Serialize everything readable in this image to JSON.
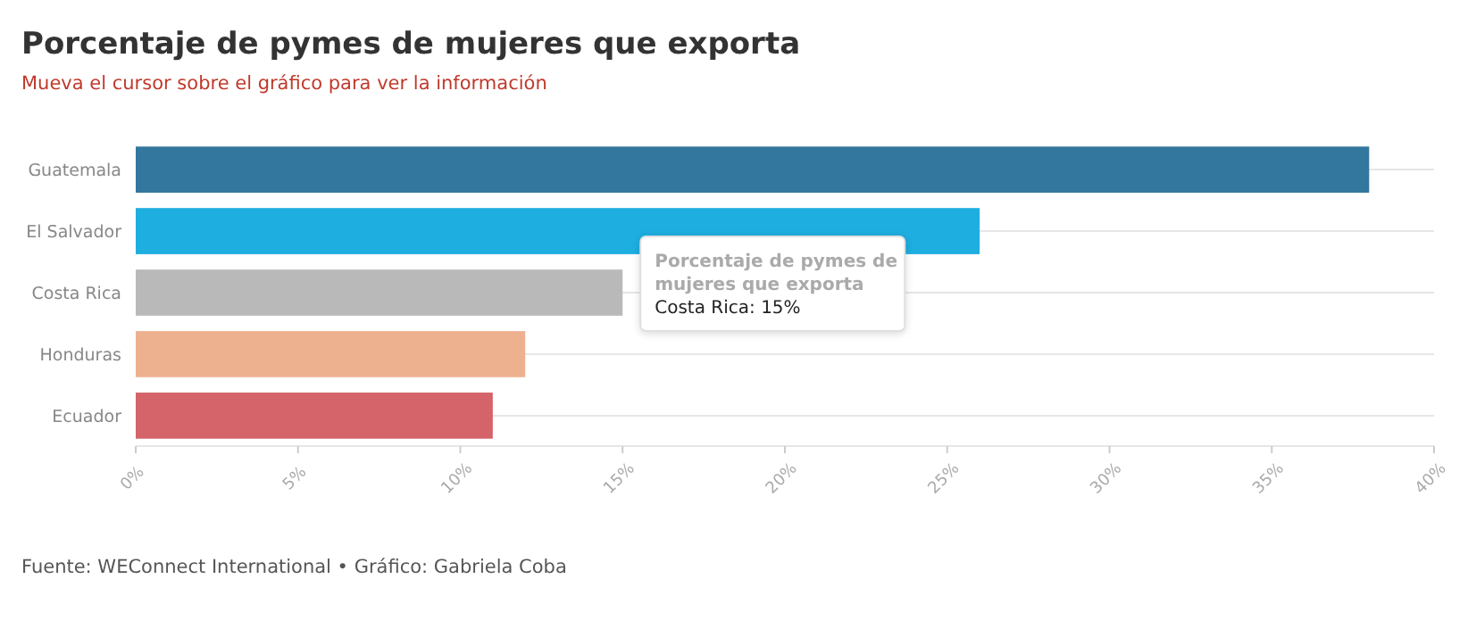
{
  "chart_data": {
    "type": "bar",
    "orientation": "horizontal",
    "title": "Porcentaje de pymes de mujeres que exporta",
    "subtitle": "Mueva el cursor sobre el gráfico para ver la información",
    "categories": [
      "Guatemala",
      "El Salvador",
      "Costa Rica",
      "Honduras",
      "Ecuador"
    ],
    "values": [
      38,
      26,
      15,
      12,
      11
    ],
    "colors": [
      "#33769e",
      "#1eaee0",
      "#b9b9b9",
      "#eeb190",
      "#d4646a"
    ],
    "xlim": [
      0,
      40
    ],
    "xticks": [
      {
        "value": 0,
        "label": "0%"
      },
      {
        "value": 5,
        "label": "5%"
      },
      {
        "value": 10,
        "label": "10%"
      },
      {
        "value": 15,
        "label": "15%"
      },
      {
        "value": 20,
        "label": "20%"
      },
      {
        "value": 25,
        "label": "25%"
      },
      {
        "value": 30,
        "label": "30%"
      },
      {
        "value": 35,
        "label": "35%"
      },
      {
        "value": 40,
        "label": "40%"
      }
    ],
    "grid": "y",
    "annotations": [
      {
        "text": "Porcentaje de pymes de\nmujeres que exporta\nCosta Rica: 15%",
        "x": 15,
        "y": "Costa Rica"
      },
      "Fuente: WEConnect International • Gráfico: Gabriela Coba"
    ]
  }
}
